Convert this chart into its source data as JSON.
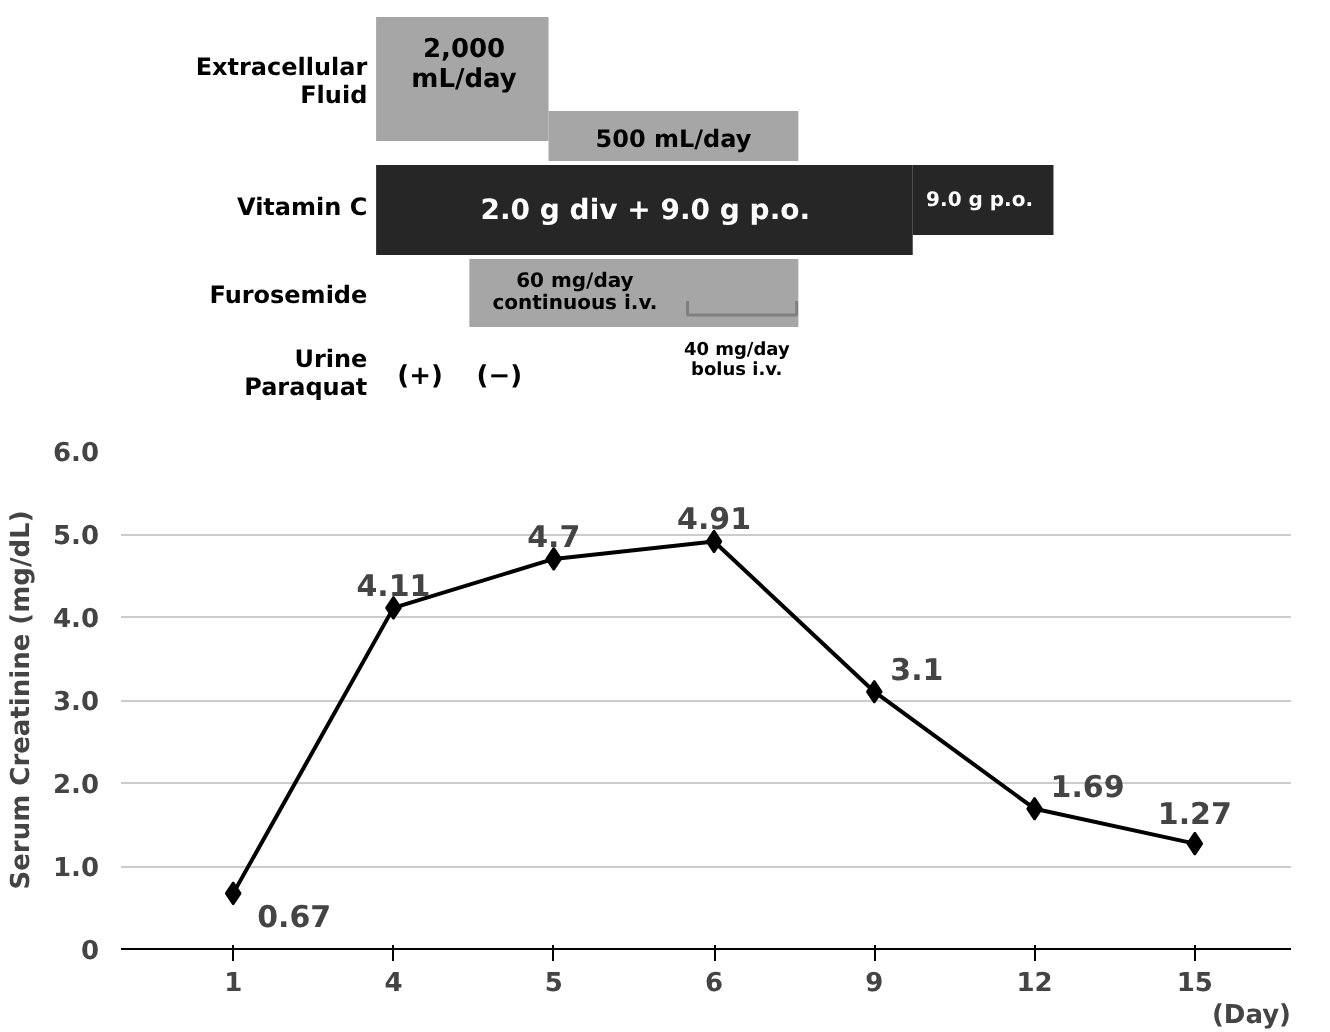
{
  "chart_data": [
    {
      "type": "other",
      "annotations": [
        "Extracellular\nFluid",
        "2,000\nmL/day",
        "500 mL/day",
        "Vitamin C",
        "2.0 g div + 9.0 g p.o.",
        "9.0 g p.o.",
        "Furosemide",
        "60 mg/day\ncontinuous i.v.",
        "40 mg/day\nbolus i.v.",
        "Urine\nParaquat",
        "(+)",
        "(−)"
      ]
    },
    {
      "type": "line",
      "categories": [
        "1",
        "4",
        "5",
        "6",
        "9",
        "12",
        "15"
      ],
      "series": [
        {
          "color": "#000000",
          "values": [
            0.67,
            4.11,
            4.7,
            4.91,
            3.1,
            1.69,
            1.27
          ]
        }
      ],
      "ylabel": "Serum Creatinine (mg/dL)",
      "xlabel": "(Day)",
      "ylim": [
        0,
        6.0
      ],
      "yticks": [
        0,
        {
          "value": 1,
          "label": "1.0"
        },
        {
          "value": 2,
          "label": "2.0"
        },
        {
          "value": 3,
          "label": "3.0"
        },
        {
          "value": 4,
          "label": "4.0"
        },
        {
          "value": 5,
          "label": "5.0"
        },
        {
          "value": 6,
          "label": "6.0"
        }
      ],
      "grid": "y",
      "marker": "diamond",
      "line_style": "solid",
      "data_labels": true
    }
  ]
}
